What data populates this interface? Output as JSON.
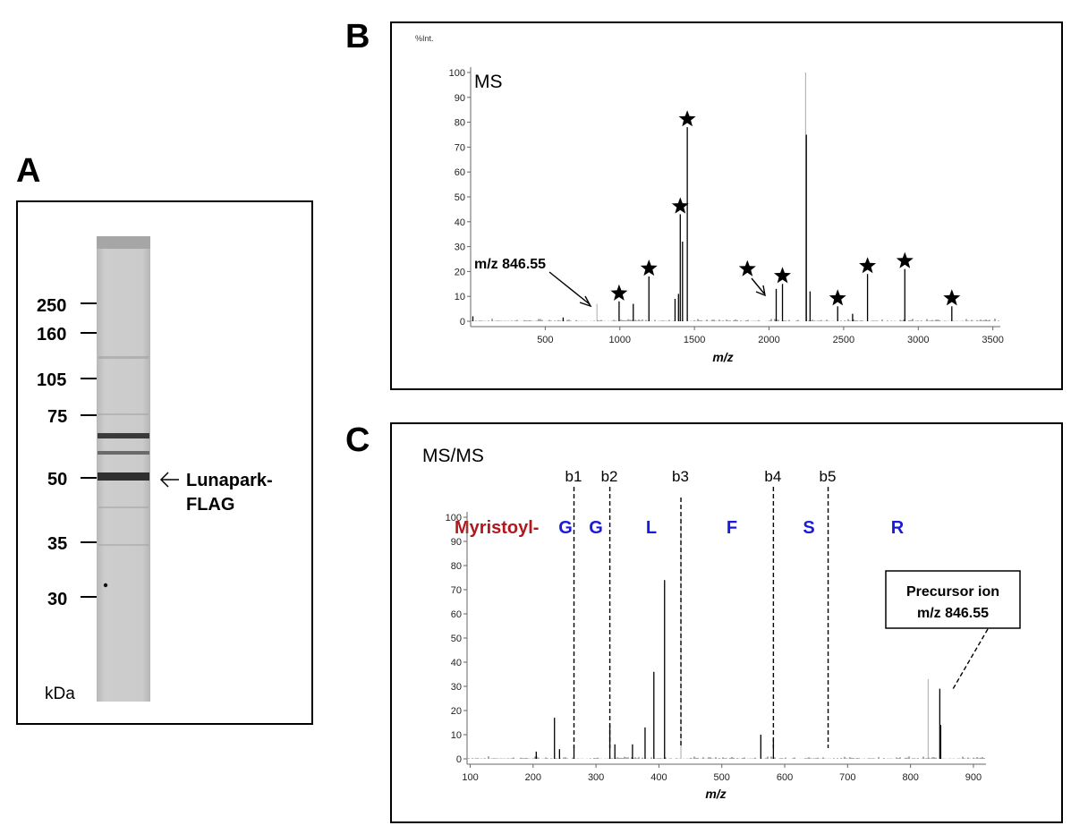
{
  "panels": {
    "a": {
      "letter": "A",
      "markers": [
        {
          "label": "250",
          "kda": 250
        },
        {
          "label": "160",
          "kda": 160
        },
        {
          "label": "105",
          "kda": 105
        },
        {
          "label": "75",
          "kda": 75
        },
        {
          "label": "50",
          "kda": 50
        },
        {
          "label": "35",
          "kda": 35
        },
        {
          "label": "30",
          "kda": 30
        }
      ],
      "unit_label": "kDa",
      "band_label_line1": "Lunapark-",
      "band_label_line2": "FLAG",
      "arrow_glyph": "<"
    },
    "b": {
      "letter": "B",
      "annotation": "m/z 846.55"
    },
    "c": {
      "letter": "C",
      "modification_label": "Myristoyl-",
      "residues": [
        "G",
        "G",
        "L",
        "F",
        "S",
        "R"
      ],
      "b_ions": [
        "b1",
        "b2",
        "b3",
        "b4",
        "b5"
      ],
      "precursor_line1": "Precursor ion",
      "precursor_line2": "m/z 846.55"
    }
  },
  "colors": {
    "modification": "#b3161b",
    "residue": "#1a1adb",
    "gel_background": "#c9c9c9",
    "band": "#3a3a3a"
  },
  "chart_data": [
    {
      "type": "bar",
      "title": "MS",
      "xlabel": "m/z",
      "ylabel": "%Int.",
      "xlim": [
        0,
        3550
      ],
      "ylim": [
        0,
        100
      ],
      "x_ticks": [
        500,
        1000,
        1500,
        2000,
        2500,
        3000,
        3500
      ],
      "y_ticks": [
        0,
        10,
        20,
        30,
        40,
        50,
        60,
        70,
        80,
        90,
        100
      ],
      "peaks": [
        {
          "mz": 15,
          "intensity": 2
        },
        {
          "mz": 620,
          "intensity": 1.5
        },
        {
          "mz": 846.55,
          "intensity": 7,
          "light": true
        },
        {
          "mz": 995,
          "intensity": 8
        },
        {
          "mz": 1090,
          "intensity": 7
        },
        {
          "mz": 1195,
          "intensity": 18
        },
        {
          "mz": 1370,
          "intensity": 9
        },
        {
          "mz": 1393,
          "intensity": 11
        },
        {
          "mz": 1405,
          "intensity": 43
        },
        {
          "mz": 1420,
          "intensity": 32
        },
        {
          "mz": 1452,
          "intensity": 78
        },
        {
          "mz": 2048,
          "intensity": 13
        },
        {
          "mz": 2090,
          "intensity": 15
        },
        {
          "mz": 2245,
          "intensity": 100,
          "light": true
        },
        {
          "mz": 2250,
          "intensity": 75
        },
        {
          "mz": 2275,
          "intensity": 12
        },
        {
          "mz": 2460,
          "intensity": 6
        },
        {
          "mz": 2560,
          "intensity": 3
        },
        {
          "mz": 2660,
          "intensity": 19
        },
        {
          "mz": 2910,
          "intensity": 21
        },
        {
          "mz": 3225,
          "intensity": 6
        }
      ],
      "starred_mz": [
        995,
        1195,
        1405,
        1452,
        2048,
        2090,
        2460,
        2660,
        2910,
        3225
      ]
    },
    {
      "type": "bar",
      "title": "MS/MS",
      "xlabel": "m/z",
      "xlim": [
        95,
        920
      ],
      "ylim": [
        0,
        100
      ],
      "x_ticks": [
        100,
        200,
        300,
        400,
        500,
        600,
        700,
        800,
        900
      ],
      "y_ticks": [
        0,
        10,
        20,
        30,
        40,
        50,
        60,
        70,
        80,
        90,
        100
      ],
      "b_ion_mz": [
        265,
        322,
        435,
        582,
        669
      ],
      "peaks": [
        {
          "mz": 205,
          "intensity": 3
        },
        {
          "mz": 234,
          "intensity": 17
        },
        {
          "mz": 242,
          "intensity": 4
        },
        {
          "mz": 265,
          "intensity": 5
        },
        {
          "mz": 322,
          "intensity": 14
        },
        {
          "mz": 330,
          "intensity": 6
        },
        {
          "mz": 358,
          "intensity": 6
        },
        {
          "mz": 378,
          "intensity": 13
        },
        {
          "mz": 392,
          "intensity": 36
        },
        {
          "mz": 409,
          "intensity": 74
        },
        {
          "mz": 435,
          "intensity": 100,
          "light": true
        },
        {
          "mz": 562,
          "intensity": 10
        },
        {
          "mz": 582,
          "intensity": 8
        },
        {
          "mz": 828,
          "intensity": 33,
          "light": true
        },
        {
          "mz": 846.55,
          "intensity": 29
        },
        {
          "mz": 848,
          "intensity": 14
        }
      ]
    }
  ]
}
